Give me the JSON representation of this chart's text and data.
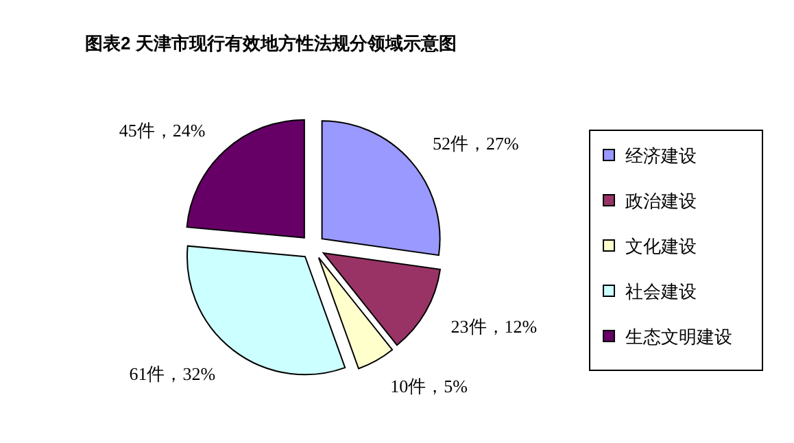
{
  "chart_data": {
    "type": "pie",
    "title": "图表2  天津市现行有效地方性法规分领域示意图",
    "categories": [
      "经济建设",
      "政治建设",
      "文化建设",
      "社会建设",
      "生态文明建设"
    ],
    "values": [
      52,
      23,
      10,
      61,
      45
    ],
    "colors": [
      "#9999ff",
      "#993366",
      "#ffffcc",
      "#ccffff",
      "#660066"
    ],
    "value_labels": [
      "52件，27%",
      "23件，12%",
      "10件，5%",
      "61件，32%",
      "45件，24%"
    ],
    "legend": "right"
  }
}
